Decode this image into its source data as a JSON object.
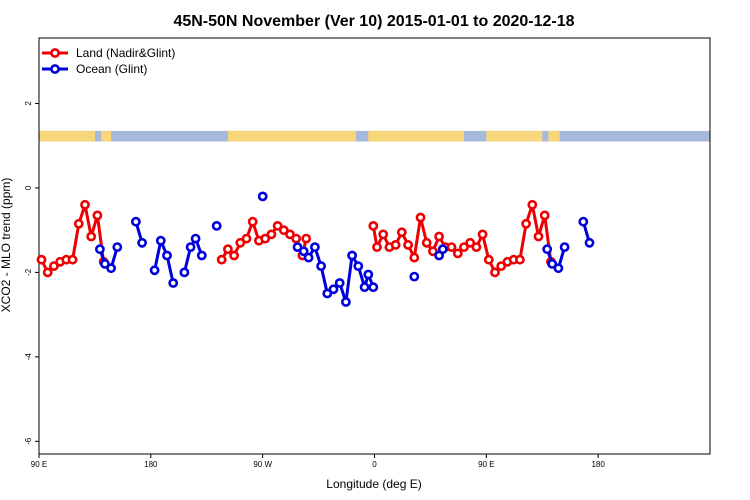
{
  "chart_data": {
    "type": "line",
    "title": "45N-50N November (Ver 10)   2015-01-01 to 2020-12-18",
    "xlabel": "Longitude (deg E)",
    "ylabel": "XCO2 - MLO trend (ppm)",
    "xlim": [
      90,
      630
    ],
    "ylim": [
      -6.3,
      3.55
    ],
    "x_ticks": [
      {
        "value": 90,
        "label": "90 E"
      },
      {
        "value": 180,
        "label": "180"
      },
      {
        "value": 270,
        "label": "90 W"
      },
      {
        "value": 360,
        "label": "0"
      },
      {
        "value": 450,
        "label": "90 E"
      },
      {
        "value": 540,
        "label": "180"
      }
    ],
    "y_ticks": [
      {
        "value": 2,
        "label": "2"
      },
      {
        "value": 0,
        "label": "0"
      },
      {
        "value": -2,
        "label": "-2"
      },
      {
        "value": -4,
        "label": "-4"
      },
      {
        "value": -6,
        "label": "-6"
      }
    ],
    "legend_position": "top-left",
    "land_band": {
      "y_range": [
        1.1,
        1.35
      ],
      "ocean_color": "#a7b9db",
      "land_color": "#f8d77a"
    },
    "series": [
      {
        "name": "Land (Nadir&Glint)",
        "color": "#ee0000",
        "segments": [
          [
            [
              92,
              -1.7
            ],
            [
              97,
              -2.0
            ],
            [
              102,
              -1.85
            ],
            [
              107,
              -1.75
            ],
            [
              112,
              -1.7
            ],
            [
              117,
              -1.7
            ],
            [
              122,
              -0.85
            ],
            [
              127,
              -0.4
            ],
            [
              132,
              -1.15
            ],
            [
              137,
              -0.65
            ],
            [
              142,
              -1.75
            ]
          ],
          [
            [
              237,
              -1.7
            ],
            [
              242,
              -1.45
            ],
            [
              247,
              -1.6
            ],
            [
              252,
              -1.3
            ],
            [
              257,
              -1.2
            ],
            [
              262,
              -0.8
            ],
            [
              267,
              -1.25
            ],
            [
              272,
              -1.2
            ],
            [
              277,
              -1.1
            ],
            [
              282,
              -0.9
            ],
            [
              287,
              -1.0
            ],
            [
              292,
              -1.1
            ],
            [
              297,
              -1.2
            ],
            [
              302,
              -1.6
            ],
            [
              305,
              -1.2
            ]
          ],
          [
            [
              359,
              -0.9
            ],
            [
              362,
              -1.4
            ],
            [
              367,
              -1.1
            ],
            [
              372,
              -1.4
            ],
            [
              377,
              -1.35
            ],
            [
              382,
              -1.05
            ],
            [
              387,
              -1.35
            ],
            [
              392,
              -1.65
            ],
            [
              397,
              -0.7
            ],
            [
              402,
              -1.3
            ],
            [
              407,
              -1.5
            ],
            [
              412,
              -1.15
            ],
            [
              417,
              -1.4
            ],
            [
              422,
              -1.4
            ],
            [
              427,
              -1.55
            ],
            [
              432,
              -1.4
            ],
            [
              437,
              -1.3
            ],
            [
              442,
              -1.4
            ],
            [
              447,
              -1.1
            ],
            [
              452,
              -1.7
            ],
            [
              457,
              -2.0
            ],
            [
              462,
              -1.85
            ],
            [
              467,
              -1.75
            ],
            [
              472,
              -1.7
            ],
            [
              477,
              -1.7
            ],
            [
              482,
              -0.85
            ],
            [
              487,
              -0.4
            ],
            [
              492,
              -1.15
            ],
            [
              497,
              -0.65
            ],
            [
              502,
              -1.75
            ]
          ]
        ]
      },
      {
        "name": "Ocean (Glint)",
        "color": "#0000dd",
        "segments": [
          [
            [
              139,
              -1.45
            ],
            [
              143,
              -1.8
            ],
            [
              148,
              -1.9
            ],
            [
              153,
              -1.4
            ]
          ],
          [
            [
              168,
              -0.8
            ],
            [
              173,
              -1.3
            ]
          ],
          [
            [
              183,
              -1.95
            ],
            [
              188,
              -1.25
            ],
            [
              193,
              -1.6
            ],
            [
              198,
              -2.25
            ]
          ],
          [
            [
              207,
              -2.0
            ],
            [
              212,
              -1.4
            ],
            [
              216,
              -1.2
            ],
            [
              221,
              -1.6
            ]
          ],
          [
            [
              233,
              -0.9
            ]
          ],
          [
            [
              270,
              -0.2
            ]
          ],
          [
            [
              298,
              -1.4
            ],
            [
              303,
              -1.5
            ],
            [
              307,
              -1.65
            ],
            [
              312,
              -1.4
            ],
            [
              317,
              -1.85
            ],
            [
              322,
              -2.5
            ],
            [
              327,
              -2.4
            ],
            [
              332,
              -2.25
            ],
            [
              337,
              -2.7
            ],
            [
              342,
              -1.6
            ],
            [
              347,
              -1.85
            ],
            [
              352,
              -2.35
            ],
            [
              355,
              -2.05
            ],
            [
              359,
              -2.35
            ]
          ],
          [
            [
              392,
              -2.1
            ]
          ],
          [
            [
              412,
              -1.6
            ],
            [
              415,
              -1.45
            ]
          ],
          [
            [
              499,
              -1.45
            ],
            [
              503,
              -1.8
            ],
            [
              508,
              -1.9
            ],
            [
              513,
              -1.4
            ]
          ],
          [
            [
              528,
              -0.8
            ],
            [
              533,
              -1.3
            ]
          ]
        ]
      }
    ]
  }
}
